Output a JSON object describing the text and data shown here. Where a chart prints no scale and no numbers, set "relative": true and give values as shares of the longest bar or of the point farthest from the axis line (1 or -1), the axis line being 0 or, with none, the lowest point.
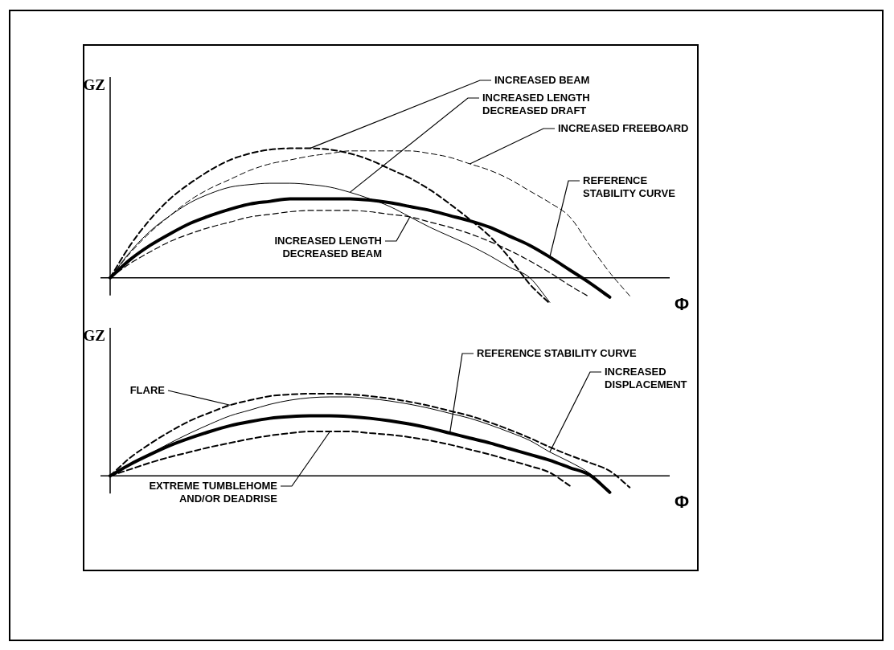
{
  "chart_data": [
    {
      "type": "line",
      "relative": true,
      "ylabel": "GZ",
      "xlabel": "Φ",
      "legend": false,
      "categories": [
        null,
        null,
        null,
        null,
        null,
        null,
        null,
        null,
        null,
        null,
        null,
        null,
        null,
        null,
        null,
        null,
        null,
        null,
        null,
        null,
        null,
        null,
        null,
        null,
        null,
        null,
        null,
        null,
        null
      ],
      "series": [
        {
          "name": "REFERENCE STABILITY CURVE",
          "color": "#000000",
          "line_style": "solid",
          "values": [
            0,
            0.14,
            0.25,
            0.34,
            0.42,
            0.48,
            0.53,
            0.57,
            0.59,
            0.61,
            0.61,
            0.61,
            0.61,
            0.6,
            0.58,
            0.55,
            0.52,
            0.48,
            0.44,
            0.39,
            0.32,
            0.25,
            0.16,
            0.06,
            -0.04,
            -0.15,
            null,
            null,
            null
          ]
        },
        {
          "name": "INCREASED BEAM",
          "color": "#000000",
          "line_style": "dashed",
          "values": [
            0,
            0.25,
            0.45,
            0.61,
            0.73,
            0.83,
            0.91,
            0.96,
            0.99,
            1,
            1,
            0.99,
            0.96,
            0.91,
            0.84,
            0.77,
            0.68,
            0.57,
            0.45,
            0.32,
            0.15,
            -0.05,
            -0.2,
            null,
            null,
            null,
            null,
            null,
            null
          ]
        },
        {
          "name": "INCREASED LENGTH DECREASED DRAFT",
          "color": "#000000",
          "line_style": "solid",
          "values": [
            0,
            0.2,
            0.36,
            0.48,
            0.58,
            0.65,
            0.7,
            0.72,
            0.73,
            0.73,
            0.72,
            0.7,
            0.66,
            0.61,
            0.55,
            0.47,
            0.39,
            0.32,
            0.25,
            0.17,
            0.08,
            0,
            -0.19,
            null,
            null,
            null,
            null,
            null,
            null
          ]
        },
        {
          "name": "INCREASED FREEBOARD",
          "color": "#000000",
          "line_style": "dashed",
          "values": [
            0,
            0.19,
            0.35,
            0.48,
            0.6,
            0.69,
            0.76,
            0.83,
            0.88,
            0.91,
            0.94,
            0.96,
            0.98,
            0.98,
            0.98,
            0.98,
            0.96,
            0.93,
            0.88,
            0.83,
            0.76,
            0.67,
            0.58,
            0.47,
            0.25,
            0.04,
            -0.14,
            null,
            null
          ]
        },
        {
          "name": "INCREASED LENGTH DECREASED BEAM",
          "color": "#000000",
          "line_style": "dashed",
          "values": [
            0,
            0.11,
            0.2,
            0.28,
            0.34,
            0.39,
            0.43,
            0.47,
            0.49,
            0.51,
            0.52,
            0.52,
            0.52,
            0.51,
            0.49,
            0.47,
            0.43,
            0.39,
            0.34,
            0.28,
            0.21,
            0.13,
            0.04,
            -0.06,
            -0.15,
            null,
            null,
            null,
            null
          ]
        }
      ]
    },
    {
      "type": "line",
      "relative": true,
      "ylabel": "GZ",
      "xlabel": "Φ",
      "legend": false,
      "categories": [
        null,
        null,
        null,
        null,
        null,
        null,
        null,
        null,
        null,
        null,
        null,
        null,
        null,
        null,
        null,
        null,
        null,
        null,
        null,
        null,
        null,
        null,
        null,
        null,
        null,
        null,
        null,
        null,
        null
      ],
      "series": [
        {
          "name": "REFERENCE STABILITY CURVE",
          "color": "#000000",
          "line_style": "solid",
          "values": [
            0,
            0.14,
            0.26,
            0.37,
            0.46,
            0.54,
            0.61,
            0.66,
            0.7,
            0.72,
            0.73,
            0.73,
            0.72,
            0.7,
            0.67,
            0.63,
            0.58,
            0.52,
            0.46,
            0.4,
            0.33,
            0.26,
            0.19,
            0.1,
            0.01,
            -0.2,
            null,
            null,
            null
          ]
        },
        {
          "name": "FLARE",
          "color": "#000000",
          "line_style": "dashed",
          "values": [
            0,
            0.22,
            0.39,
            0.54,
            0.67,
            0.77,
            0.86,
            0.92,
            0.97,
            0.99,
            1,
            1,
            0.99,
            0.97,
            0.94,
            0.9,
            0.85,
            0.79,
            0.73,
            0.65,
            0.56,
            0.46,
            0.35,
            0.25,
            0.16,
            0.06,
            -0.14,
            null,
            null
          ]
        },
        {
          "name": "INCREASED DISPLACEMENT",
          "color": "#000000",
          "line_style": "solid",
          "values": [
            0,
            0.14,
            0.27,
            0.4,
            0.52,
            0.63,
            0.73,
            0.8,
            0.87,
            0.92,
            0.95,
            0.96,
            0.96,
            0.94,
            0.91,
            0.87,
            0.82,
            0.76,
            0.7,
            0.62,
            0.53,
            0.43,
            0.29,
            0.17,
            0.03,
            -0.18,
            null,
            null,
            null
          ]
        },
        {
          "name": "EXTREME TUMBLEHOME AND/OR DEADRISE",
          "color": "#000000",
          "line_style": "dashed",
          "values": [
            0,
            0.08,
            0.16,
            0.23,
            0.29,
            0.35,
            0.4,
            0.45,
            0.49,
            0.52,
            0.54,
            0.54,
            0.54,
            0.52,
            0.5,
            0.47,
            0.43,
            0.38,
            0.32,
            0.26,
            0.19,
            0.12,
            0.04,
            -0.12,
            null,
            null,
            null,
            null,
            null
          ]
        }
      ]
    }
  ]
}
